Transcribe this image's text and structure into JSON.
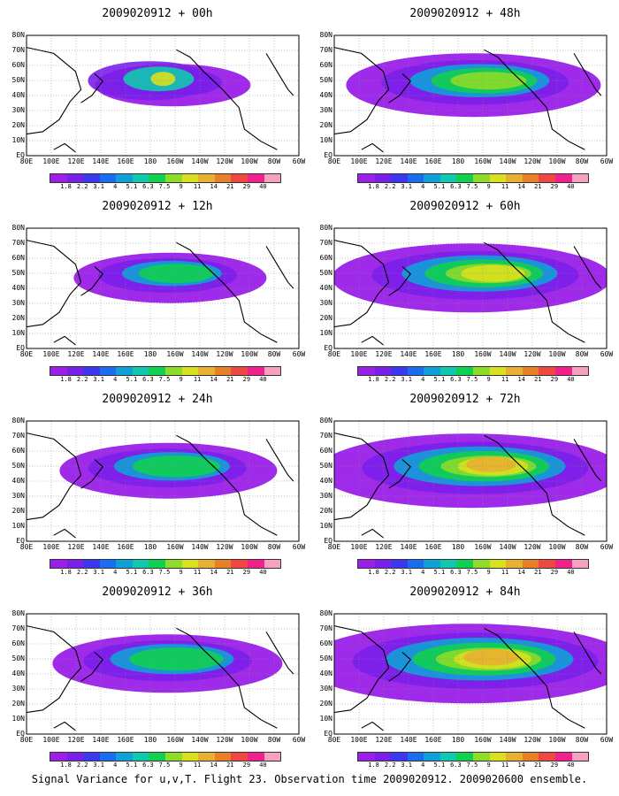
{
  "caption": "Signal Variance for u,v,T. Flight 23. Observation time 2009020912. 2009020600 ensemble.",
  "lat_labels": [
    "80N",
    "70N",
    "60N",
    "50N",
    "40N",
    "30N",
    "20N",
    "10N",
    "EQ"
  ],
  "lon_labels": [
    "80E",
    "100E",
    "120E",
    "140E",
    "160E",
    "180",
    "160W",
    "140W",
    "120W",
    "100W",
    "80W",
    "60W"
  ],
  "colorbar": {
    "labels": [
      "1.8",
      "2.2",
      "3.1",
      "4",
      "5.1",
      "6.3",
      "7.5",
      "9",
      "11",
      "14",
      "21",
      "29",
      "40"
    ],
    "colors": [
      "#9b1fe8",
      "#7a1fea",
      "#3c38f0",
      "#1a6cf0",
      "#10a0d8",
      "#10c8b0",
      "#10d050",
      "#8cdc28",
      "#d8e020",
      "#e8b030",
      "#e88028",
      "#ee4840",
      "#f0208c",
      "#f8a0c0"
    ]
  },
  "panels": [
    {
      "title": "2009020912 + 00h",
      "intensity": 0.2
    },
    {
      "title": "2009020912 + 48h",
      "intensity": 0.6
    },
    {
      "title": "2009020912 + 12h",
      "intensity": 0.35
    },
    {
      "title": "2009020912 + 60h",
      "intensity": 0.7
    },
    {
      "title": "2009020912 + 24h",
      "intensity": 0.45
    },
    {
      "title": "2009020912 + 72h",
      "intensity": 0.8
    },
    {
      "title": "2009020912 + 36h",
      "intensity": 0.5
    },
    {
      "title": "2009020912 + 84h",
      "intensity": 0.9
    }
  ]
}
